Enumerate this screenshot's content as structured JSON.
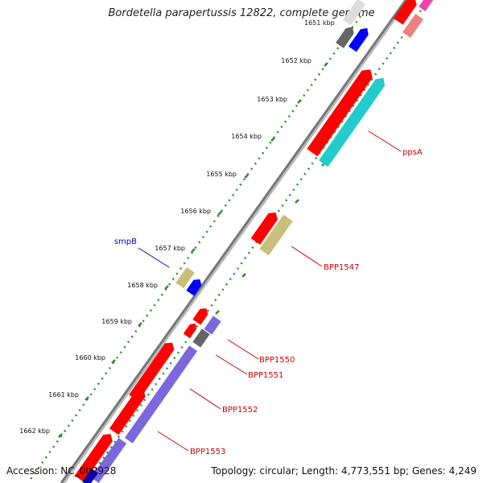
{
  "title": "Bordetella parapertussis 12822, complete genome",
  "footer": {
    "accession": "Accession: NC_002928",
    "summary": "Topology: circular; Length: 4,773,551 bp; Genes: 4,249"
  },
  "ticks": [
    {
      "label": "1651 kbp",
      "faded": true
    },
    {
      "label": "1652 kbp"
    },
    {
      "label": "1653 kbp"
    },
    {
      "label": "1654 kbp"
    },
    {
      "label": "1655 kbp"
    },
    {
      "label": "1656 kbp"
    },
    {
      "label": "1657 kbp"
    },
    {
      "label": "1658 kbp"
    },
    {
      "label": "1659 kbp"
    },
    {
      "label": "1660 kbp"
    },
    {
      "label": "1661 kbp"
    },
    {
      "label": "1662 kbp"
    }
  ],
  "gene_labels": [
    {
      "text": "ppsA",
      "color": "#cc0000"
    },
    {
      "text": "BPP1547",
      "color": "#cc0000"
    },
    {
      "text": "smpB",
      "color": "#0000cc"
    },
    {
      "text": "BPP1550",
      "color": "#cc0000"
    },
    {
      "text": "BPP1551",
      "color": "#cc0000"
    },
    {
      "text": "BPP1552",
      "color": "#cc0000"
    },
    {
      "text": "BPP1553",
      "color": "#cc0000"
    }
  ],
  "colors": {
    "backbone": "#888888",
    "tick": "#2e8b2e",
    "cds_red": "#ff0000",
    "cds_cyan": "#22cccc",
    "cds_khaki": "#c8c07a",
    "cds_blue": "#0000ff",
    "cds_purple": "#7b68dd",
    "cds_gray": "#666666",
    "cds_pink": "#ee8080",
    "cds_magenta": "#ee44aa",
    "cds_lavender": "#c8c8f0"
  }
}
